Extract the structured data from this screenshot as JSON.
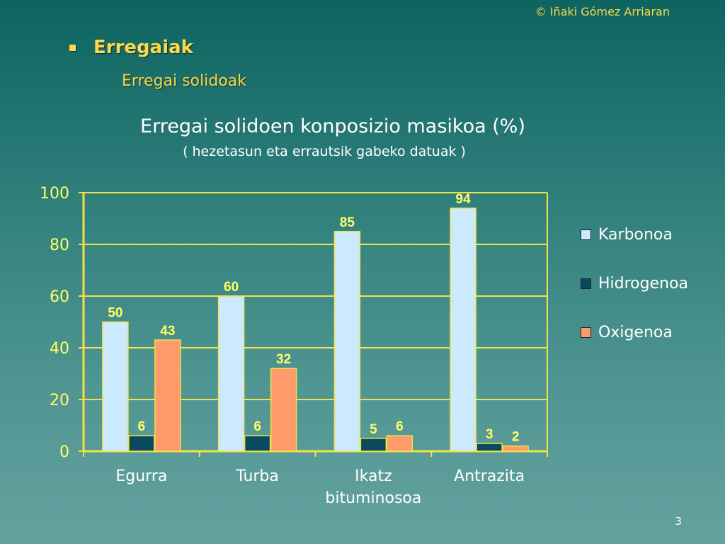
{
  "slide": {
    "copyright": "© Iñaki Gómez Arriaran",
    "heading": "Erregaiak",
    "subheading": "Erregai solidoak",
    "page_number": "3"
  },
  "colors": {
    "Karbonoa": "#cceaff",
    "Hidrogenoa": "#0a4a5e",
    "Oxigenoa": "#ff9b6b",
    "axis": "#f2e24a",
    "labels": "#ffff66"
  },
  "chart_data": {
    "type": "bar",
    "title": "Erregai solidoen konposizio masikoa (%)",
    "subtitle": "( hezetasun eta errautsik gabeko datuak )",
    "categories": [
      "Egurra",
      "Turba",
      "Ikatz bituminosoa",
      "Antrazita"
    ],
    "series": [
      {
        "name": "Karbonoa",
        "values": [
          50,
          60,
          85,
          94
        ]
      },
      {
        "name": "Hidrogenoa",
        "values": [
          6,
          6,
          5,
          3
        ]
      },
      {
        "name": "Oxigenoa",
        "values": [
          43,
          32,
          6,
          2
        ]
      }
    ],
    "ylim": [
      0,
      100
    ],
    "yticks": [
      0,
      20,
      40,
      60,
      80,
      100
    ],
    "grid": true,
    "legend": "right"
  }
}
